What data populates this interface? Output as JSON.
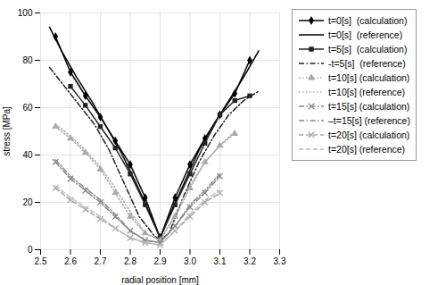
{
  "chart_data": {
    "type": "line",
    "xlabel": "radial position [mm]",
    "ylabel": "stress [MPa]",
    "xlim": [
      2.5,
      3.3
    ],
    "ylim": [
      0,
      100
    ],
    "xticks": [
      2.5,
      2.6,
      2.7,
      2.8,
      2.9,
      {
        "value": 3.0,
        "label": "3.0"
      },
      3.1,
      3.2,
      3.3
    ],
    "yticks": [
      0,
      20,
      40,
      60,
      80,
      100
    ],
    "grid": true,
    "legend": "right",
    "series": [
      {
        "name": "t=0[s]  (calculation)",
        "color": "#000000",
        "marker": "diamond",
        "line_style": "solid",
        "x": [
          2.55,
          2.6,
          2.65,
          2.7,
          2.75,
          2.8,
          2.85,
          2.9,
          2.95,
          3.0,
          3.05,
          3.1,
          3.15,
          3.2
        ],
        "values": [
          90,
          75,
          65,
          56,
          46,
          36,
          22,
          5,
          22,
          36,
          47,
          57,
          66,
          80
        ]
      },
      {
        "name": "t=0[s]  (reference)",
        "color": "#000000",
        "line_style": "solid",
        "x": [
          2.53,
          2.57,
          2.62,
          2.67,
          2.72,
          2.77,
          2.82,
          2.87,
          2.9,
          2.93,
          2.98,
          3.03,
          3.08,
          3.13,
          3.18,
          3.23
        ],
        "values": [
          94,
          84,
          73,
          63,
          52,
          41,
          28,
          14,
          5,
          14,
          28,
          42,
          53,
          63,
          73,
          84
        ]
      },
      {
        "name": "t=5[s]  (calculation)",
        "color": "#222222",
        "marker": "square",
        "line_style": "solid",
        "x": [
          2.6,
          2.65,
          2.7,
          2.75,
          2.8,
          2.85,
          2.9,
          2.95,
          3.0,
          3.05,
          3.1,
          3.15,
          3.2
        ],
        "values": [
          69,
          61,
          52,
          43,
          32,
          19,
          5,
          19,
          32,
          45,
          57,
          63,
          65
        ]
      },
      {
        "name": "-t=5[s]  (reference)",
        "color": "#222222",
        "line_style": "dashdot",
        "x": [
          2.53,
          2.58,
          2.63,
          2.68,
          2.73,
          2.78,
          2.83,
          2.88,
          2.9,
          2.93,
          2.98,
          3.03,
          3.08,
          3.13,
          3.18,
          3.23
        ],
        "values": [
          77,
          69,
          61,
          53,
          42,
          28,
          14,
          6,
          4,
          7,
          23,
          37,
          48,
          57,
          63,
          67
        ]
      },
      {
        "name": "t=10[s] (calculation)",
        "color": "#aaaaaa",
        "marker": "triangle",
        "line_style": "dotted",
        "x": [
          2.55,
          2.6,
          2.65,
          2.7,
          2.75,
          2.8,
          2.85,
          2.9,
          2.95,
          3.0,
          3.05,
          3.1,
          3.15
        ],
        "values": [
          52,
          47,
          41,
          34,
          24,
          14,
          7,
          4,
          14,
          26,
          37,
          44,
          49
        ]
      },
      {
        "name": "t=10[s] (reference)",
        "color": "#aaaaaa",
        "line_style": "dotted",
        "x": [
          2.55,
          2.6,
          2.65,
          2.7,
          2.75,
          2.8,
          2.85,
          2.9,
          2.95,
          3.0,
          3.05,
          3.1,
          3.15
        ],
        "values": [
          53,
          48,
          42,
          35,
          26,
          16,
          7,
          4,
          15,
          27,
          37,
          44,
          50
        ]
      },
      {
        "name": "t=15[s] (calculation)",
        "color": "#888888",
        "marker": "x",
        "line_style": "dashdot",
        "x": [
          2.55,
          2.6,
          2.65,
          2.7,
          2.75,
          2.8,
          2.85,
          2.9,
          2.95,
          3.0,
          3.05,
          3.1
        ],
        "values": [
          37,
          30,
          25,
          20,
          14,
          8,
          4,
          3,
          10,
          18,
          24,
          31
        ]
      },
      {
        "name": "–t=15[s] (reference)",
        "color": "#888888",
        "line_style": "dashdot",
        "x": [
          2.55,
          2.6,
          2.65,
          2.7,
          2.75,
          2.8,
          2.85,
          2.9,
          2.95,
          3.0,
          3.05,
          3.1
        ],
        "values": [
          38,
          31,
          26,
          21,
          15,
          8,
          4,
          3,
          10,
          19,
          25,
          32
        ]
      },
      {
        "name": "t=20[s] (calculation)",
        "color": "#aaaaaa",
        "marker": "x",
        "line_style": "dashed",
        "x": [
          2.55,
          2.6,
          2.65,
          2.7,
          2.75,
          2.8,
          2.85,
          2.9,
          2.95,
          3.0,
          3.05,
          3.1
        ],
        "values": [
          26,
          21,
          17,
          13,
          9,
          5,
          3,
          2,
          8,
          14,
          20,
          24
        ]
      },
      {
        "name": "t=20[s] (reference)",
        "color": "#bbbbbb",
        "line_style": "dashed",
        "x": [
          2.55,
          2.6,
          2.65,
          2.7,
          2.75,
          2.8,
          2.85,
          2.9,
          2.95,
          3.0,
          3.05,
          3.1
        ],
        "values": [
          27,
          22,
          18,
          14,
          9,
          5,
          3,
          2,
          8,
          15,
          21,
          25
        ]
      }
    ]
  }
}
